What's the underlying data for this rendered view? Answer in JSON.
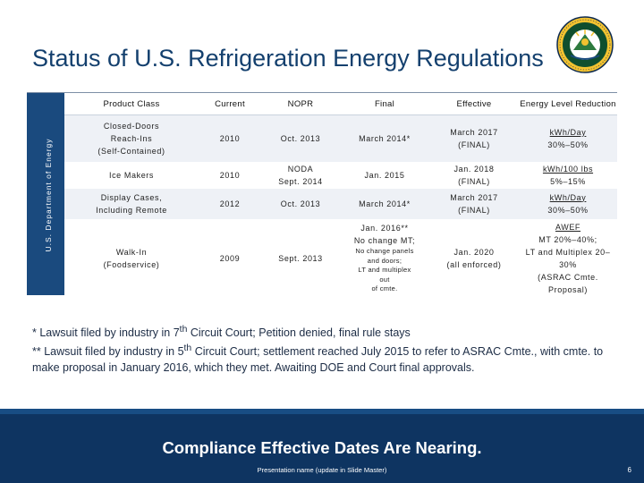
{
  "slide": {
    "title": "Status of U.S. Refrigeration Energy Regulations",
    "sidebar_label": "U.S. Department of Energy",
    "seal_icon": "doe-seal-icon",
    "seal_lettering": [
      "DEPARTMENT OF ENERGY",
      "UNITED STATES OF AMERICA"
    ]
  },
  "table": {
    "headers": [
      "Product Class",
      "Current",
      "NOPR",
      "Final",
      "Effective",
      "Energy Level Reduction"
    ],
    "rows": [
      {
        "product": [
          "Closed-Doors",
          "Reach-Ins",
          "(Self-Contained)"
        ],
        "current": "2010",
        "nopr": [
          "Oct. 2013"
        ],
        "final": [
          "March 2014*"
        ],
        "effective": [
          "March 2017",
          "(FINAL)"
        ],
        "reduction": [
          "kWh/Day",
          "30%–50%"
        ]
      },
      {
        "product": [
          "Ice Makers"
        ],
        "current": "2010",
        "nopr": [
          "NODA",
          "Sept. 2014"
        ],
        "final": [
          "Jan. 2015"
        ],
        "effective": [
          "Jan. 2018",
          "(FINAL)"
        ],
        "reduction": [
          "kWh/100 lbs",
          "5%–15%"
        ]
      },
      {
        "product": [
          "Display Cases,",
          "Including Remote"
        ],
        "current": "2012",
        "nopr": [
          "Oct. 2013"
        ],
        "final": [
          "March 2014*"
        ],
        "effective": [
          "March 2017",
          "(FINAL)"
        ],
        "reduction": [
          "kWh/Day",
          "30%–50%"
        ]
      },
      {
        "product": [
          "Walk-In",
          "(Foodservice)"
        ],
        "current": "2009",
        "nopr": [
          "Sept. 2013"
        ],
        "final_top": [
          "Jan. 2016**",
          "No change MT;"
        ],
        "final_small": [
          "No change panels",
          "and doors;",
          "LT and multiplex",
          "out",
          "of cmte."
        ],
        "effective": [
          "Jan. 2020",
          "(all enforced)"
        ],
        "reduction": [
          "AWEF",
          "MT 20%–40%;",
          "LT and Multiplex 20–30%",
          "(ASRAC Cmte. Proposal)"
        ]
      }
    ]
  },
  "footnotes": {
    "note1_pre": "*  Lawsuit filed by industry in 7",
    "note1_sup": "th",
    "note1_post": " Circuit Court; Petition denied, final rule stays",
    "note2_pre": "** Lawsuit filed by industry in 5",
    "note2_sup": "th",
    "note2_post": " Circuit Court; settlement reached July 2015 to refer to ASRAC Cmte., with cmte. to make proposal in January 2016, which they met. Awaiting DOE and Court final approvals."
  },
  "footer": {
    "message": "Compliance Effective Dates Are Nearing.",
    "presentation_name": "Presentation name (update in Slide Master)",
    "page_number": "6"
  },
  "colors": {
    "title": "#14406e",
    "sidebar": "#1a4a7e",
    "footer": "#0e3461",
    "row_alt": "#eef1f6"
  }
}
